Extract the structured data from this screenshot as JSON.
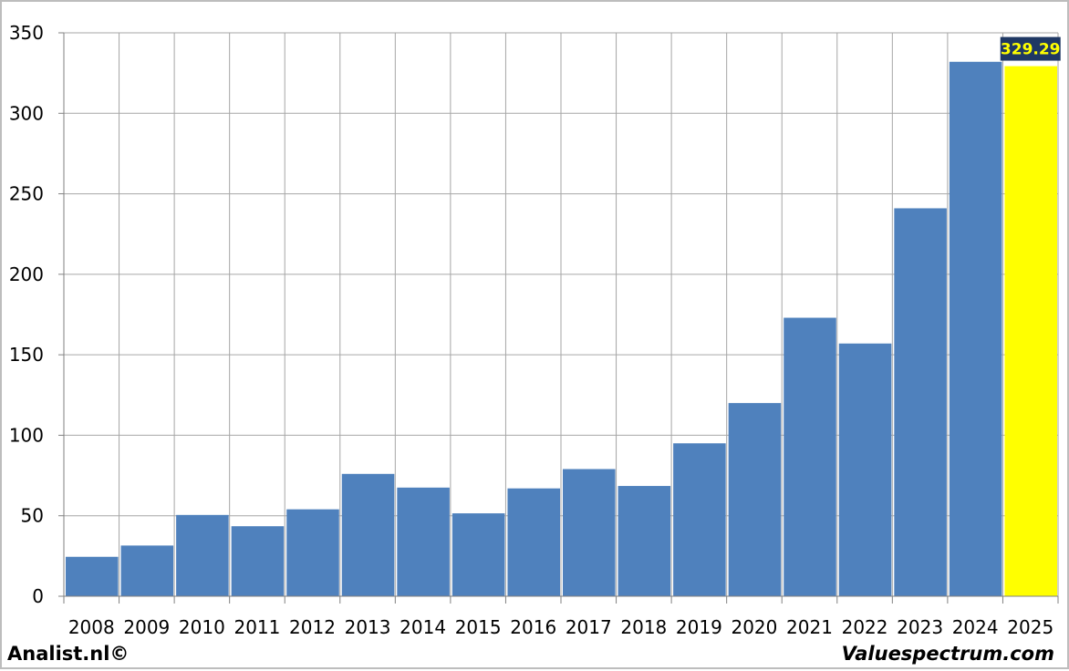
{
  "chart_data": {
    "type": "bar",
    "categories": [
      "2008",
      "2009",
      "2010",
      "2011",
      "2012",
      "2013",
      "2014",
      "2015",
      "2016",
      "2017",
      "2018",
      "2019",
      "2020",
      "2021",
      "2022",
      "2023",
      "2024",
      "2025"
    ],
    "values": [
      24.5,
      31.5,
      50.5,
      43.5,
      54,
      76,
      67.5,
      51.5,
      67,
      79,
      68.5,
      95,
      120,
      173,
      157,
      241,
      332,
      329.29
    ],
    "ylim": [
      0,
      350
    ],
    "yticks": [
      0,
      50,
      100,
      150,
      200,
      250,
      300,
      350
    ],
    "grid": true,
    "highlight": {
      "category": "2025",
      "label": "329.29"
    },
    "colors": {
      "bar": "#4f81bd",
      "highlight_bar": "#ffff00",
      "highlight_label_bg": "#1f3864",
      "highlight_label_text": "#ffff00",
      "grid": "#a6a6a6"
    }
  },
  "footer": {
    "left": "Analist.nl©",
    "right": "Valuespectrum.com"
  }
}
